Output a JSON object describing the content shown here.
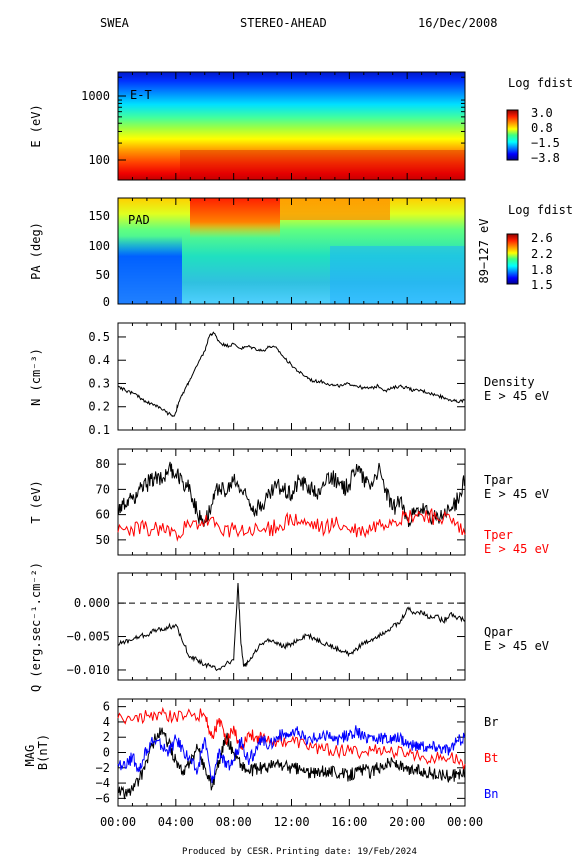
{
  "header": {
    "instrument": "SWEA",
    "spacecraft": "STEREO-AHEAD",
    "date": "16/Dec/2008"
  },
  "footer": {
    "produced_by": "Produced by CESR.",
    "printing_date": "Printing date: 19/Feb/2024"
  },
  "colors": {
    "black": "#000000",
    "red": "#ff0000",
    "blue": "#0000ff"
  },
  "x_axis": {
    "ticks": [
      "00:00",
      "04:00",
      "08:00",
      "12:00",
      "16:00",
      "20:00",
      "00:00"
    ],
    "range_hours": [
      0,
      24
    ]
  },
  "chart_data": [
    {
      "type": "heatmap",
      "panel_label": "E-T",
      "ylabel": "E (eV)",
      "yscale": "log",
      "ylim": [
        55,
        2400
      ],
      "yticks": [
        "100",
        "1000"
      ],
      "colorbar": {
        "title": "Log fdist",
        "ticks": [
          "3.0",
          "0.8",
          "−1.5",
          "−3.8"
        ]
      }
    },
    {
      "type": "heatmap",
      "panel_label": "PAD",
      "ylabel": "PA (deg)",
      "ylim": [
        0,
        180
      ],
      "yticks": [
        "0",
        "50",
        "100",
        "150"
      ],
      "right_label": "89−127 eV",
      "colorbar": {
        "title": "Log fdist",
        "ticks": [
          "2.6",
          "2.2",
          "1.8",
          "1.5"
        ]
      }
    },
    {
      "type": "line",
      "ylabel": "N (cm⁻³)",
      "ylim": [
        0.1,
        0.56
      ],
      "yticks": [
        "0.1",
        "0.2",
        "0.3",
        "0.4",
        "0.5"
      ],
      "series": [
        {
          "name": "Density",
          "sub": "E > 45 eV",
          "color": "#000000",
          "x": [
            0,
            0.5,
            1,
            1.5,
            2,
            2.5,
            3,
            3.5,
            3.9,
            4.2,
            4.6,
            5,
            5.5,
            6,
            6.3,
            6.6,
            7,
            7.5,
            8,
            8.5,
            9,
            9.5,
            10,
            10.5,
            11,
            11.5,
            12,
            12.5,
            13,
            13.5,
            14,
            14.5,
            15,
            15.5,
            16,
            16.5,
            17,
            17.5,
            18,
            18.5,
            19,
            19.5,
            20,
            20.5,
            21,
            21.5,
            22,
            22.5,
            23,
            23.5,
            24
          ],
          "y": [
            0.29,
            0.27,
            0.26,
            0.24,
            0.22,
            0.21,
            0.19,
            0.17,
            0.16,
            0.22,
            0.27,
            0.32,
            0.38,
            0.44,
            0.5,
            0.52,
            0.48,
            0.46,
            0.47,
            0.45,
            0.46,
            0.45,
            0.44,
            0.46,
            0.45,
            0.41,
            0.38,
            0.35,
            0.33,
            0.31,
            0.31,
            0.3,
            0.29,
            0.29,
            0.3,
            0.29,
            0.28,
            0.28,
            0.29,
            0.27,
            0.28,
            0.29,
            0.28,
            0.27,
            0.27,
            0.26,
            0.25,
            0.24,
            0.23,
            0.22,
            0.23
          ]
        }
      ]
    },
    {
      "type": "line",
      "ylabel": "T (eV)",
      "ylim": [
        44,
        86
      ],
      "yticks": [
        "50",
        "60",
        "70",
        "80"
      ],
      "series": [
        {
          "name": "Tpar",
          "sub": "E > 45 eV",
          "color": "#000000",
          "x": [
            0,
            0.5,
            1,
            1.5,
            2,
            2.5,
            3,
            3.5,
            4,
            4.5,
            5,
            5.5,
            6,
            6.5,
            7,
            7.5,
            8,
            8.5,
            9,
            9.5,
            10,
            10.5,
            11,
            11.5,
            12,
            12.5,
            13,
            13.5,
            14,
            14.5,
            15,
            15.5,
            16,
            16.5,
            17,
            17.5,
            18,
            18.5,
            19,
            19.5,
            20,
            20.5,
            21,
            21.5,
            22,
            22.5,
            23,
            23.5,
            24
          ],
          "y": [
            61,
            64,
            66,
            70,
            72,
            75,
            74,
            78,
            76,
            73,
            70,
            60,
            58,
            64,
            72,
            68,
            74,
            70,
            66,
            62,
            64,
            68,
            72,
            70,
            68,
            74,
            72,
            70,
            68,
            76,
            74,
            70,
            72,
            80,
            74,
            72,
            78,
            70,
            62,
            66,
            58,
            60,
            62,
            60,
            58,
            60,
            62,
            66,
            74
          ]
        },
        {
          "name": "Tper",
          "sub": "E > 45 eV",
          "color": "#ff0000",
          "x": [
            0,
            1,
            2,
            3,
            4,
            5,
            6,
            7,
            8,
            9,
            10,
            11,
            12,
            13,
            14,
            15,
            16,
            17,
            18,
            19,
            20,
            21,
            22,
            23,
            24
          ],
          "y": [
            53,
            54,
            55,
            54,
            53,
            55,
            57,
            55,
            54,
            53,
            54,
            55,
            58,
            56,
            55,
            56,
            54,
            53,
            56,
            58,
            59,
            60,
            59,
            58,
            52
          ]
        }
      ]
    },
    {
      "type": "line",
      "ylabel": "Q (erg.sec⁻¹.cm⁻²)",
      "ylim": [
        -0.0115,
        0.0045
      ],
      "yticks": [
        "−0.010",
        "−0.005",
        "0.000"
      ],
      "reference_line": 0,
      "series": [
        {
          "name": "Qpar",
          "sub": "E > 45 eV",
          "color": "#000000",
          "x": [
            0,
            0.5,
            1,
            1.5,
            2,
            2.5,
            3,
            3.5,
            4,
            4.5,
            5,
            5.5,
            6,
            6.5,
            7,
            7.5,
            8,
            8.3,
            8.5,
            8.7,
            9,
            9.5,
            10,
            10.5,
            11,
            11.5,
            12,
            12.5,
            13,
            13.5,
            14,
            14.5,
            15,
            15.5,
            16,
            16.5,
            17,
            17.5,
            18,
            18.5,
            19,
            19.5,
            20,
            20.5,
            21,
            21.5,
            22,
            22.5,
            23,
            23.5,
            24
          ],
          "y": [
            -0.0062,
            -0.0058,
            -0.0055,
            -0.005,
            -0.0048,
            -0.0042,
            -0.0038,
            -0.0036,
            -0.0032,
            -0.006,
            -0.008,
            -0.0085,
            -0.0092,
            -0.0096,
            -0.0098,
            -0.009,
            -0.0085,
            0.003,
            -0.006,
            -0.0095,
            -0.0088,
            -0.007,
            -0.006,
            -0.0055,
            -0.0062,
            -0.0066,
            -0.006,
            -0.0055,
            -0.0048,
            -0.0052,
            -0.0058,
            -0.0062,
            -0.0068,
            -0.0072,
            -0.0075,
            -0.0068,
            -0.006,
            -0.0055,
            -0.0048,
            -0.0042,
            -0.0035,
            -0.003,
            -0.0008,
            -0.0015,
            -0.0012,
            -0.0022,
            -0.0018,
            -0.0028,
            -0.0015,
            -0.0022,
            -0.0025
          ]
        }
      ]
    },
    {
      "type": "line",
      "ylabel": "MAG\nB(nT)",
      "ylim": [
        -7,
        7
      ],
      "yticks": [
        "−6",
        "−4",
        "−2",
        "0",
        "2",
        "4",
        "6"
      ],
      "series": [
        {
          "name": "Br",
          "color": "#000000",
          "x": [
            0,
            0.5,
            1,
            1.5,
            2,
            2.5,
            3,
            3.5,
            4,
            4.5,
            5,
            5.5,
            6,
            6.5,
            7,
            7.5,
            8,
            8.5,
            9,
            9.5,
            10,
            10.5,
            11,
            11.5,
            12,
            12.5,
            13,
            13.5,
            14,
            14.5,
            15,
            15.5,
            16,
            16.5,
            17,
            17.5,
            18,
            18.5,
            19,
            19.5,
            20,
            20.5,
            21,
            21.5,
            22,
            22.5,
            23,
            23.5,
            24
          ],
          "y": [
            -5,
            -5.4,
            -4.8,
            -3.5,
            -1,
            1.5,
            2.8,
            1.2,
            -1,
            -3,
            -1,
            0.5,
            -2,
            -4.5,
            -1,
            2,
            0,
            -1.5,
            -2.5,
            -2.2,
            -2,
            -1.8,
            -1.5,
            -1.8,
            -2,
            -2.2,
            -2.5,
            -2.8,
            -2.6,
            -2.3,
            -2.5,
            -2.8,
            -3,
            -2.5,
            -2.2,
            -2.6,
            -2,
            -1.5,
            -1.2,
            -1.8,
            -2.5,
            -2.2,
            -2.4,
            -2.6,
            -3,
            -2.8,
            -3.2,
            -2.8,
            -2.6
          ]
        },
        {
          "name": "Bt",
          "color": "#ff0000",
          "x": [
            0,
            1,
            2,
            3,
            4,
            5,
            6,
            6.5,
            7,
            7.5,
            8,
            8.5,
            9,
            9.5,
            10,
            11,
            12,
            13,
            14,
            15,
            16,
            17,
            18,
            19,
            20,
            21,
            22,
            23,
            24
          ],
          "y": [
            4.5,
            4.2,
            4.8,
            5,
            4.6,
            5.2,
            4.8,
            2,
            4.5,
            1,
            3.5,
            0.5,
            2.5,
            2,
            2,
            1.5,
            1.5,
            1,
            0.5,
            0.2,
            0.2,
            0,
            0.5,
            0,
            0,
            -0.5,
            -0.8,
            -0.6,
            -1.5
          ]
        },
        {
          "name": "Bn",
          "color": "#0000ff",
          "x": [
            0,
            0.5,
            1,
            1.5,
            2,
            2.5,
            3,
            3.5,
            4,
            4.5,
            5,
            5.5,
            6,
            6.5,
            7,
            7.5,
            8,
            8.5,
            9,
            9.5,
            10,
            10.5,
            11,
            11.5,
            12,
            12.5,
            13,
            13.5,
            14,
            14.5,
            15,
            15.5,
            16,
            16.5,
            17,
            17.5,
            18,
            18.5,
            19,
            19.5,
            20,
            20.5,
            21,
            21.5,
            22,
            22.5,
            23,
            23.5,
            24
          ],
          "y": [
            -1.5,
            -2,
            -0.5,
            -2.5,
            0.5,
            1.5,
            1,
            0,
            1.8,
            0.5,
            -1,
            -2.5,
            2,
            -4,
            0.5,
            -2,
            -1,
            1.5,
            -1,
            0,
            1.8,
            1,
            2,
            2.5,
            2.2,
            2.8,
            1.5,
            2,
            1.8,
            2.5,
            1.5,
            2,
            2.2,
            2.8,
            1.8,
            2.2,
            1.6,
            2,
            1.5,
            2,
            1.2,
            0.8,
            1,
            0.6,
            0.8,
            0.5,
            0.3,
            1.5,
            2
          ]
        }
      ]
    }
  ]
}
